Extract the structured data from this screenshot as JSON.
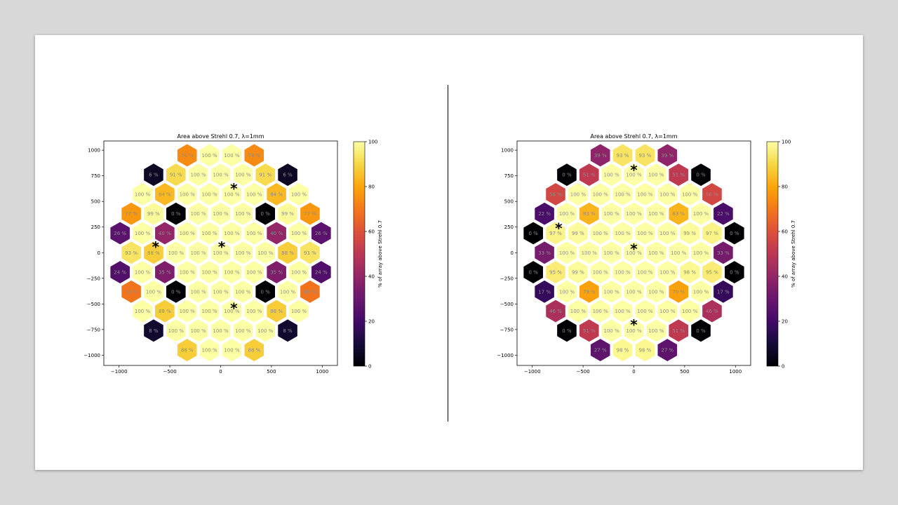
{
  "chart_data": [
    {
      "type": "heatmap",
      "title": "Area above Strehl 0.7, λ=1mm",
      "xlabel": "",
      "ylabel": "",
      "xlim": [
        -1150,
        1150
      ],
      "ylim": [
        -1100,
        1090
      ],
      "xticks": [
        -1000,
        -500,
        0,
        500,
        1000
      ],
      "yticks": [
        -1000,
        -750,
        -500,
        -250,
        0,
        250,
        500,
        750,
        1000
      ],
      "grid": false,
      "colorbar": {
        "label": "% of array above Strehl 0.7",
        "range": [
          0,
          100
        ],
        "ticks": [
          0,
          20,
          40,
          60,
          80,
          100
        ],
        "colormap": "inferno"
      },
      "value_suffix": " %",
      "cells": [
        {
          "x": -330,
          "y": 950,
          "v": 74
        },
        {
          "x": -110,
          "y": 950,
          "v": 100
        },
        {
          "x": 110,
          "y": 950,
          "v": 100
        },
        {
          "x": 330,
          "y": 950,
          "v": 74
        },
        {
          "x": -660,
          "y": 760,
          "v": 6
        },
        {
          "x": -440,
          "y": 760,
          "v": 91
        },
        {
          "x": -220,
          "y": 760,
          "v": 100
        },
        {
          "x": 0,
          "y": 760,
          "v": 100
        },
        {
          "x": 220,
          "y": 760,
          "v": 100
        },
        {
          "x": 440,
          "y": 760,
          "v": 91
        },
        {
          "x": 660,
          "y": 760,
          "v": 6
        },
        {
          "x": -770,
          "y": 570,
          "v": 100
        },
        {
          "x": -550,
          "y": 570,
          "v": 84
        },
        {
          "x": -330,
          "y": 570,
          "v": 100
        },
        {
          "x": -110,
          "y": 570,
          "v": 100
        },
        {
          "x": 110,
          "y": 570,
          "v": 100
        },
        {
          "x": 330,
          "y": 570,
          "v": 100
        },
        {
          "x": 550,
          "y": 570,
          "v": 84
        },
        {
          "x": 770,
          "y": 570,
          "v": 100
        },
        {
          "x": -880,
          "y": 380,
          "v": 77
        },
        {
          "x": -660,
          "y": 380,
          "v": 99
        },
        {
          "x": -440,
          "y": 380,
          "v": 0
        },
        {
          "x": -220,
          "y": 380,
          "v": 100
        },
        {
          "x": 0,
          "y": 380,
          "v": 100
        },
        {
          "x": 220,
          "y": 380,
          "v": 100
        },
        {
          "x": 440,
          "y": 380,
          "v": 0
        },
        {
          "x": 660,
          "y": 380,
          "v": 99
        },
        {
          "x": 880,
          "y": 380,
          "v": 77
        },
        {
          "x": -990,
          "y": 190,
          "v": 26
        },
        {
          "x": -770,
          "y": 190,
          "v": 100
        },
        {
          "x": -550,
          "y": 190,
          "v": 40
        },
        {
          "x": -330,
          "y": 190,
          "v": 100
        },
        {
          "x": -110,
          "y": 190,
          "v": 100
        },
        {
          "x": 110,
          "y": 190,
          "v": 100
        },
        {
          "x": 330,
          "y": 190,
          "v": 100
        },
        {
          "x": 550,
          "y": 190,
          "v": 40
        },
        {
          "x": 770,
          "y": 190,
          "v": 100
        },
        {
          "x": 990,
          "y": 190,
          "v": 26
        },
        {
          "x": -880,
          "y": 0,
          "v": 93
        },
        {
          "x": -660,
          "y": 0,
          "v": 88
        },
        {
          "x": -440,
          "y": 0,
          "v": 100
        },
        {
          "x": -220,
          "y": 0,
          "v": 100
        },
        {
          "x": 0,
          "y": 0,
          "v": 100
        },
        {
          "x": 220,
          "y": 0,
          "v": 100
        },
        {
          "x": 440,
          "y": 0,
          "v": 100
        },
        {
          "x": 660,
          "y": 0,
          "v": 88
        },
        {
          "x": 880,
          "y": 0,
          "v": 93
        },
        {
          "x": -990,
          "y": -190,
          "v": 24
        },
        {
          "x": -770,
          "y": -190,
          "v": 100
        },
        {
          "x": -550,
          "y": -190,
          "v": 35
        },
        {
          "x": -330,
          "y": -190,
          "v": 100
        },
        {
          "x": -110,
          "y": -190,
          "v": 100
        },
        {
          "x": 110,
          "y": -190,
          "v": 100
        },
        {
          "x": 330,
          "y": -190,
          "v": 100
        },
        {
          "x": 550,
          "y": -190,
          "v": 35
        },
        {
          "x": 770,
          "y": -190,
          "v": 100
        },
        {
          "x": 990,
          "y": -190,
          "v": 24
        },
        {
          "x": -880,
          "y": -380,
          "v": 69
        },
        {
          "x": -660,
          "y": -380,
          "v": 100
        },
        {
          "x": -440,
          "y": -380,
          "v": 0
        },
        {
          "x": -220,
          "y": -380,
          "v": 100
        },
        {
          "x": 0,
          "y": -380,
          "v": 100
        },
        {
          "x": 220,
          "y": -380,
          "v": 100
        },
        {
          "x": 440,
          "y": -380,
          "v": 0
        },
        {
          "x": 660,
          "y": -380,
          "v": 100
        },
        {
          "x": 880,
          "y": -380,
          "v": 69
        },
        {
          "x": -770,
          "y": -570,
          "v": 100
        },
        {
          "x": -550,
          "y": -570,
          "v": 88
        },
        {
          "x": -330,
          "y": -570,
          "v": 100
        },
        {
          "x": -110,
          "y": -570,
          "v": 100
        },
        {
          "x": 110,
          "y": -570,
          "v": 100
        },
        {
          "x": 330,
          "y": -570,
          "v": 100
        },
        {
          "x": 550,
          "y": -570,
          "v": 88
        },
        {
          "x": 770,
          "y": -570,
          "v": 100
        },
        {
          "x": -660,
          "y": -760,
          "v": 8
        },
        {
          "x": -440,
          "y": -760,
          "v": 100
        },
        {
          "x": -220,
          "y": -760,
          "v": 100
        },
        {
          "x": 0,
          "y": -760,
          "v": 100
        },
        {
          "x": 220,
          "y": -760,
          "v": 100
        },
        {
          "x": 440,
          "y": -760,
          "v": 100
        },
        {
          "x": 660,
          "y": -760,
          "v": 8
        },
        {
          "x": -330,
          "y": -950,
          "v": 88
        },
        {
          "x": -110,
          "y": -950,
          "v": 100
        },
        {
          "x": 110,
          "y": -950,
          "v": 100
        },
        {
          "x": 330,
          "y": -950,
          "v": 88
        }
      ],
      "markers": [
        {
          "x": 130,
          "y": 640
        },
        {
          "x": -640,
          "y": 70
        },
        {
          "x": 10,
          "y": 70
        },
        {
          "x": 130,
          "y": -530
        }
      ]
    },
    {
      "type": "heatmap",
      "title": "Area above Strehl 0.7, λ=1mm",
      "xlabel": "",
      "ylabel": "",
      "xlim": [
        -1150,
        1150
      ],
      "ylim": [
        -1100,
        1090
      ],
      "xticks": [
        -1000,
        -500,
        0,
        500,
        1000
      ],
      "yticks": [
        -1000,
        -750,
        -500,
        -250,
        0,
        250,
        500,
        750,
        1000
      ],
      "grid": false,
      "colorbar": {
        "label": "% of array above Strehl 0.7",
        "range": [
          0,
          100
        ],
        "ticks": [
          0,
          20,
          40,
          60,
          80,
          100
        ],
        "colormap": "inferno"
      },
      "value_suffix": " %",
      "cells": [
        {
          "x": -330,
          "y": 950,
          "v": 39
        },
        {
          "x": -110,
          "y": 950,
          "v": 93
        },
        {
          "x": 110,
          "y": 950,
          "v": 93
        },
        {
          "x": 330,
          "y": 950,
          "v": 39
        },
        {
          "x": -660,
          "y": 760,
          "v": 0
        },
        {
          "x": -440,
          "y": 760,
          "v": 51
        },
        {
          "x": -220,
          "y": 760,
          "v": 100
        },
        {
          "x": 0,
          "y": 760,
          "v": 100
        },
        {
          "x": 220,
          "y": 760,
          "v": 100
        },
        {
          "x": 440,
          "y": 760,
          "v": 51
        },
        {
          "x": 660,
          "y": 760,
          "v": 0
        },
        {
          "x": -770,
          "y": 570,
          "v": 56
        },
        {
          "x": -550,
          "y": 570,
          "v": 100
        },
        {
          "x": -330,
          "y": 570,
          "v": 100
        },
        {
          "x": -110,
          "y": 570,
          "v": 100
        },
        {
          "x": 110,
          "y": 570,
          "v": 100
        },
        {
          "x": 330,
          "y": 570,
          "v": 100
        },
        {
          "x": 550,
          "y": 570,
          "v": 100
        },
        {
          "x": 770,
          "y": 570,
          "v": 56
        },
        {
          "x": -880,
          "y": 380,
          "v": 22
        },
        {
          "x": -660,
          "y": 380,
          "v": 100
        },
        {
          "x": -440,
          "y": 380,
          "v": 83
        },
        {
          "x": -220,
          "y": 380,
          "v": 100
        },
        {
          "x": 0,
          "y": 380,
          "v": 100
        },
        {
          "x": 220,
          "y": 380,
          "v": 100
        },
        {
          "x": 440,
          "y": 380,
          "v": 83
        },
        {
          "x": 660,
          "y": 380,
          "v": 100
        },
        {
          "x": 880,
          "y": 380,
          "v": 22
        },
        {
          "x": -990,
          "y": 190,
          "v": 0
        },
        {
          "x": -770,
          "y": 190,
          "v": 97
        },
        {
          "x": -550,
          "y": 190,
          "v": 99
        },
        {
          "x": -330,
          "y": 190,
          "v": 100
        },
        {
          "x": -110,
          "y": 190,
          "v": 100
        },
        {
          "x": 110,
          "y": 190,
          "v": 100
        },
        {
          "x": 330,
          "y": 190,
          "v": 100
        },
        {
          "x": 550,
          "y": 190,
          "v": 99
        },
        {
          "x": 770,
          "y": 190,
          "v": 97
        },
        {
          "x": 990,
          "y": 190,
          "v": 0
        },
        {
          "x": -880,
          "y": 0,
          "v": 33
        },
        {
          "x": -660,
          "y": 0,
          "v": 100
        },
        {
          "x": -440,
          "y": 0,
          "v": 100
        },
        {
          "x": -220,
          "y": 0,
          "v": 100
        },
        {
          "x": 0,
          "y": 0,
          "v": 100
        },
        {
          "x": 220,
          "y": 0,
          "v": 100
        },
        {
          "x": 440,
          "y": 0,
          "v": 100
        },
        {
          "x": 660,
          "y": 0,
          "v": 100
        },
        {
          "x": 880,
          "y": 0,
          "v": 33
        },
        {
          "x": -990,
          "y": -190,
          "v": 0
        },
        {
          "x": -770,
          "y": -190,
          "v": 95
        },
        {
          "x": -550,
          "y": -190,
          "v": 99
        },
        {
          "x": -330,
          "y": -190,
          "v": 100
        },
        {
          "x": -110,
          "y": -190,
          "v": 100
        },
        {
          "x": 110,
          "y": -190,
          "v": 100
        },
        {
          "x": 330,
          "y": -190,
          "v": 100
        },
        {
          "x": 550,
          "y": -190,
          "v": 98
        },
        {
          "x": 770,
          "y": -190,
          "v": 95
        },
        {
          "x": 990,
          "y": -190,
          "v": 0
        },
        {
          "x": -880,
          "y": -380,
          "v": 17
        },
        {
          "x": -660,
          "y": -380,
          "v": 100
        },
        {
          "x": -440,
          "y": -380,
          "v": 79
        },
        {
          "x": -220,
          "y": -380,
          "v": 100
        },
        {
          "x": 0,
          "y": -380,
          "v": 100
        },
        {
          "x": 220,
          "y": -380,
          "v": 100
        },
        {
          "x": 440,
          "y": -380,
          "v": 79
        },
        {
          "x": 660,
          "y": -380,
          "v": 100
        },
        {
          "x": 880,
          "y": -380,
          "v": 17
        },
        {
          "x": -770,
          "y": -570,
          "v": 46
        },
        {
          "x": -550,
          "y": -570,
          "v": 100
        },
        {
          "x": -330,
          "y": -570,
          "v": 100
        },
        {
          "x": -110,
          "y": -570,
          "v": 100
        },
        {
          "x": 110,
          "y": -570,
          "v": 100
        },
        {
          "x": 330,
          "y": -570,
          "v": 100
        },
        {
          "x": 550,
          "y": -570,
          "v": 100
        },
        {
          "x": 770,
          "y": -570,
          "v": 46
        },
        {
          "x": -660,
          "y": -760,
          "v": 0
        },
        {
          "x": -440,
          "y": -760,
          "v": 51
        },
        {
          "x": -220,
          "y": -760,
          "v": 100
        },
        {
          "x": 0,
          "y": -760,
          "v": 100
        },
        {
          "x": 220,
          "y": -760,
          "v": 100
        },
        {
          "x": 440,
          "y": -760,
          "v": 51
        },
        {
          "x": 660,
          "y": -760,
          "v": 0
        },
        {
          "x": -330,
          "y": -950,
          "v": 27
        },
        {
          "x": -110,
          "y": -950,
          "v": 98
        },
        {
          "x": 110,
          "y": -950,
          "v": 98
        },
        {
          "x": 330,
          "y": -950,
          "v": 27
        }
      ],
      "markers": [
        {
          "x": 0,
          "y": 820
        },
        {
          "x": -740,
          "y": 250
        },
        {
          "x": 0,
          "y": 50
        },
        {
          "x": 0,
          "y": -690
        }
      ]
    }
  ],
  "colors": {
    "marker": "#1f77b4",
    "hex_label": "#8c8c8c",
    "background": "#d8d8d8",
    "slide": "#ffffff"
  },
  "marker_glyph": "*"
}
